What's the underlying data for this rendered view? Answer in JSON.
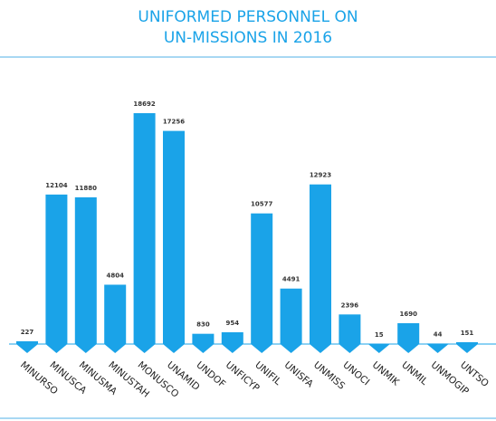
{
  "chart_data": {
    "type": "bar",
    "title": [
      "UNIFORMED PERSONNEL ON",
      "UN-MISSIONS IN 2016"
    ],
    "categories": [
      "MINURSO",
      "MINUSCA",
      "MINUSMA",
      "MINUSTAH",
      "MONUSCO",
      "UNAMID",
      "UNDOF",
      "UNFICYP",
      "UNIFIL",
      "UNISFA",
      "UNMISS",
      "UNOCI",
      "UNMIK",
      "UNMIL",
      "UNMOGIP",
      "UNTSO"
    ],
    "values": [
      227,
      12104,
      11880,
      4804,
      18692,
      17256,
      830,
      954,
      10577,
      4491,
      12923,
      2396,
      15,
      1690,
      44,
      151
    ],
    "color": "#1aa3e8"
  }
}
